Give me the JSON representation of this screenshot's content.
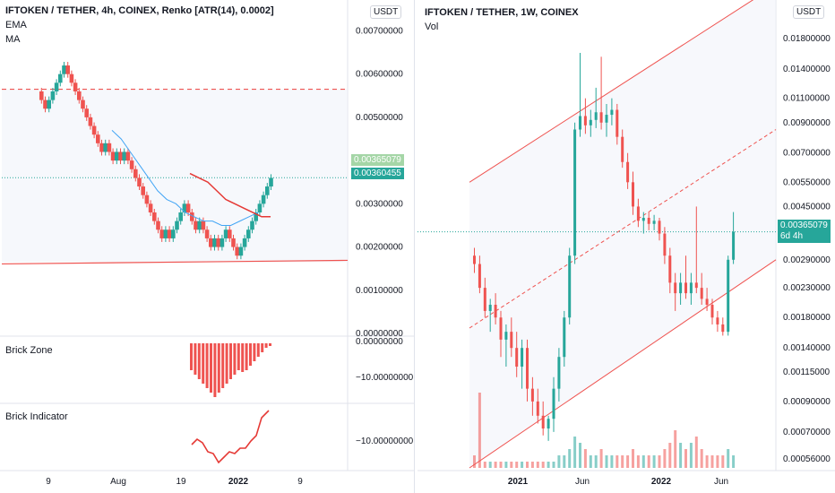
{
  "left": {
    "title": "IFTOKEN / TETHER, 4h, COINEX, Renko [ATR(14), 0.0002]",
    "overlays": [
      "EMA",
      "MA"
    ],
    "currency_button": "USDT",
    "price_labels": [
      {
        "text": "0.00365079",
        "bg": "#a5d6a7",
        "y": 0.00365079
      },
      {
        "text": "0.00360455",
        "bg": "#26a69a",
        "y": 0.00360455
      }
    ],
    "panes": [
      {
        "name": "Brick Zone",
        "tick": "0.00000000",
        "tick2": "−10.00000000"
      },
      {
        "name": "Brick Indicator",
        "tick": "−10.00000000"
      }
    ],
    "x_ticks": [
      {
        "label": "9",
        "bold": false
      },
      {
        "label": "Aug",
        "bold": false
      },
      {
        "label": "19",
        "bold": false
      },
      {
        "label": "2022",
        "bold": true
      },
      {
        "label": "9",
        "bold": false
      }
    ]
  },
  "right": {
    "title": "IFTOKEN / TETHER, 1W, COINEX",
    "overlays": [
      "Vol"
    ],
    "currency_button": "USDT",
    "price_label": {
      "text": "0.00365079",
      "sub": "6d 4h",
      "bg": "#26a69a"
    },
    "x_ticks": [
      {
        "label": "2021",
        "bold": true
      },
      {
        "label": "Jun",
        "bold": false
      },
      {
        "label": "2022",
        "bold": true
      },
      {
        "label": "Jun",
        "bold": false
      }
    ]
  },
  "chart_data": [
    {
      "type": "renko",
      "title": "IFTOKEN / TETHER, 4h, COINEX, Renko [ATR(14), 0.0002]",
      "y_ticks": [
        "0.00700000",
        "0.00600000",
        "0.00500000",
        "0.00300000",
        "0.00200000",
        "0.00100000",
        "0.00000000"
      ],
      "ylim": [
        0.0,
        0.0073
      ],
      "bricks": [
        {
          "y": 0.0054,
          "up": false
        },
        {
          "y": 0.0052,
          "up": false
        },
        {
          "y": 0.0054,
          "up": true
        },
        {
          "y": 0.0056,
          "up": true
        },
        {
          "y": 0.0058,
          "up": true
        },
        {
          "y": 0.006,
          "up": true
        },
        {
          "y": 0.0062,
          "up": true
        },
        {
          "y": 0.006,
          "up": false
        },
        {
          "y": 0.0058,
          "up": false
        },
        {
          "y": 0.0056,
          "up": false
        },
        {
          "y": 0.0054,
          "up": false
        },
        {
          "y": 0.0052,
          "up": false
        },
        {
          "y": 0.005,
          "up": false
        },
        {
          "y": 0.0048,
          "up": false
        },
        {
          "y": 0.0046,
          "up": false
        },
        {
          "y": 0.0044,
          "up": false
        },
        {
          "y": 0.0042,
          "up": false
        },
        {
          "y": 0.0044,
          "up": true
        },
        {
          "y": 0.0042,
          "up": false
        },
        {
          "y": 0.004,
          "up": false
        },
        {
          "y": 0.0042,
          "up": true
        },
        {
          "y": 0.004,
          "up": false
        },
        {
          "y": 0.0042,
          "up": true
        },
        {
          "y": 0.004,
          "up": false
        },
        {
          "y": 0.0038,
          "up": false
        },
        {
          "y": 0.0036,
          "up": false
        },
        {
          "y": 0.0034,
          "up": false
        },
        {
          "y": 0.0032,
          "up": false
        },
        {
          "y": 0.003,
          "up": false
        },
        {
          "y": 0.0028,
          "up": false
        },
        {
          "y": 0.0026,
          "up": false
        },
        {
          "y": 0.0024,
          "up": false
        },
        {
          "y": 0.0022,
          "up": false
        },
        {
          "y": 0.0024,
          "up": true
        },
        {
          "y": 0.0022,
          "up": false
        },
        {
          "y": 0.0024,
          "up": true
        },
        {
          "y": 0.0026,
          "up": true
        },
        {
          "y": 0.0028,
          "up": true
        },
        {
          "y": 0.003,
          "up": true
        },
        {
          "y": 0.0028,
          "up": false
        },
        {
          "y": 0.0026,
          "up": false
        },
        {
          "y": 0.0024,
          "up": false
        },
        {
          "y": 0.0026,
          "up": true
        },
        {
          "y": 0.0024,
          "up": false
        },
        {
          "y": 0.0022,
          "up": false
        },
        {
          "y": 0.002,
          "up": false
        },
        {
          "y": 0.0022,
          "up": true
        },
        {
          "y": 0.002,
          "up": false
        },
        {
          "y": 0.0022,
          "up": true
        },
        {
          "y": 0.0024,
          "up": true
        },
        {
          "y": 0.0022,
          "up": false
        },
        {
          "y": 0.002,
          "up": false
        },
        {
          "y": 0.0018,
          "up": false
        },
        {
          "y": 0.002,
          "up": true
        },
        {
          "y": 0.0022,
          "up": true
        },
        {
          "y": 0.0024,
          "up": true
        },
        {
          "y": 0.0026,
          "up": true
        },
        {
          "y": 0.0028,
          "up": true
        },
        {
          "y": 0.003,
          "up": true
        },
        {
          "y": 0.0032,
          "up": true
        },
        {
          "y": 0.0034,
          "up": true
        },
        {
          "y": 0.0036,
          "up": true
        }
      ],
      "ema": [
        0.0047,
        0.0045,
        0.0042,
        0.0039,
        0.0036,
        0.0033,
        0.0031,
        0.003,
        0.0028,
        0.0027,
        0.0026,
        0.0026,
        0.0025,
        0.0025,
        0.0026,
        0.0027,
        0.0028
      ],
      "ma": [
        0.0037,
        0.0036,
        0.0035,
        0.0033,
        0.0031,
        0.003,
        0.0029,
        0.0028,
        0.0027,
        0.0027
      ],
      "resistance": 0.00565,
      "support": 0.00165,
      "brick_zone": [
        3,
        3.5,
        4,
        4.5,
        5,
        5.5,
        6,
        5.5,
        5,
        4.5,
        4,
        3.5,
        3,
        3.2,
        3,
        2.5,
        2,
        1.5,
        1,
        0.5,
        0.3
      ],
      "brick_indicator": [
        3,
        4,
        3.5,
        3,
        4,
        5,
        4.5,
        5,
        4,
        3,
        3,
        2,
        1.5,
        1,
        0
      ]
    },
    {
      "type": "candlestick",
      "title": "IFTOKEN / TETHER, 1W, COINEX",
      "scale": "log",
      "y_ticks": [
        "0.01800000",
        "0.01400000",
        "0.01100000",
        "0.00900000",
        "0.00700000",
        "0.00550000",
        "0.00450000",
        "0.00290000",
        "0.00230000",
        "0.00180000",
        "0.00140000",
        "0.00115000",
        "0.00090000",
        "0.00070000",
        "0.00056000"
      ],
      "ylim": [
        0.00052,
        0.023
      ],
      "channel": {
        "slope_note": "ascending regression channel",
        "upper_end": 0.028,
        "mid_end": 0.0085,
        "lower_end": 0.0029
      },
      "candles": [
        {
          "o": 0.003,
          "h": 0.0032,
          "l": 0.0026,
          "c": 0.0028
        },
        {
          "o": 0.0028,
          "h": 0.003,
          "l": 0.0022,
          "c": 0.0023
        },
        {
          "o": 0.0023,
          "h": 0.0025,
          "l": 0.0018,
          "c": 0.0019
        },
        {
          "o": 0.0019,
          "h": 0.0021,
          "l": 0.0016,
          "c": 0.002
        },
        {
          "o": 0.002,
          "h": 0.0022,
          "l": 0.0017,
          "c": 0.0018
        },
        {
          "o": 0.0018,
          "h": 0.0019,
          "l": 0.0013,
          "c": 0.0015
        },
        {
          "o": 0.0015,
          "h": 0.0017,
          "l": 0.0012,
          "c": 0.0016
        },
        {
          "o": 0.0016,
          "h": 0.0018,
          "l": 0.0013,
          "c": 0.0014
        },
        {
          "o": 0.0014,
          "h": 0.0016,
          "l": 0.0011,
          "c": 0.0012
        },
        {
          "o": 0.0012,
          "h": 0.0015,
          "l": 0.001,
          "c": 0.0014
        },
        {
          "o": 0.0014,
          "h": 0.0015,
          "l": 0.0009,
          "c": 0.001
        },
        {
          "o": 0.001,
          "h": 0.0011,
          "l": 0.0008,
          "c": 0.0009
        },
        {
          "o": 0.0009,
          "h": 0.001,
          "l": 0.00075,
          "c": 0.0008
        },
        {
          "o": 0.0008,
          "h": 0.0009,
          "l": 0.00068,
          "c": 0.00072
        },
        {
          "o": 0.00072,
          "h": 0.0008,
          "l": 0.00065,
          "c": 0.00078
        },
        {
          "o": 0.00078,
          "h": 0.0011,
          "l": 0.0007,
          "c": 0.001
        },
        {
          "o": 0.001,
          "h": 0.0014,
          "l": 0.0009,
          "c": 0.0013
        },
        {
          "o": 0.0013,
          "h": 0.0019,
          "l": 0.0012,
          "c": 0.0018
        },
        {
          "o": 0.0018,
          "h": 0.0032,
          "l": 0.0017,
          "c": 0.003
        },
        {
          "o": 0.003,
          "h": 0.009,
          "l": 0.0028,
          "c": 0.0085
        },
        {
          "o": 0.0085,
          "h": 0.016,
          "l": 0.008,
          "c": 0.0095
        },
        {
          "o": 0.0095,
          "h": 0.011,
          "l": 0.0082,
          "c": 0.0088
        },
        {
          "o": 0.0088,
          "h": 0.01,
          "l": 0.008,
          "c": 0.0092
        },
        {
          "o": 0.0092,
          "h": 0.012,
          "l": 0.0086,
          "c": 0.0098
        },
        {
          "o": 0.0098,
          "h": 0.0155,
          "l": 0.0085,
          "c": 0.009
        },
        {
          "o": 0.009,
          "h": 0.0105,
          "l": 0.008,
          "c": 0.0096
        },
        {
          "o": 0.0096,
          "h": 0.011,
          "l": 0.0088,
          "c": 0.01
        },
        {
          "o": 0.01,
          "h": 0.0105,
          "l": 0.0075,
          "c": 0.008
        },
        {
          "o": 0.008,
          "h": 0.0085,
          "l": 0.0062,
          "c": 0.0065
        },
        {
          "o": 0.0065,
          "h": 0.007,
          "l": 0.0052,
          "c": 0.0055
        },
        {
          "o": 0.0055,
          "h": 0.006,
          "l": 0.0042,
          "c": 0.0045
        },
        {
          "o": 0.0045,
          "h": 0.0048,
          "l": 0.0038,
          "c": 0.004
        },
        {
          "o": 0.004,
          "h": 0.0043,
          "l": 0.0036,
          "c": 0.0041
        },
        {
          "o": 0.0041,
          "h": 0.0043,
          "l": 0.0037,
          "c": 0.0039
        },
        {
          "o": 0.0039,
          "h": 0.0042,
          "l": 0.0037,
          "c": 0.004
        },
        {
          "o": 0.004,
          "h": 0.0041,
          "l": 0.0034,
          "c": 0.0036
        },
        {
          "o": 0.0036,
          "h": 0.0038,
          "l": 0.0028,
          "c": 0.003
        },
        {
          "o": 0.003,
          "h": 0.0032,
          "l": 0.0022,
          "c": 0.0024
        },
        {
          "o": 0.0024,
          "h": 0.0026,
          "l": 0.0019,
          "c": 0.0022
        },
        {
          "o": 0.0022,
          "h": 0.0026,
          "l": 0.002,
          "c": 0.0024
        },
        {
          "o": 0.0024,
          "h": 0.003,
          "l": 0.0021,
          "c": 0.0022
        },
        {
          "o": 0.0022,
          "h": 0.0026,
          "l": 0.002,
          "c": 0.0024
        },
        {
          "o": 0.0024,
          "h": 0.0045,
          "l": 0.0022,
          "c": 0.0023
        },
        {
          "o": 0.0023,
          "h": 0.0026,
          "l": 0.002,
          "c": 0.0021
        },
        {
          "o": 0.0021,
          "h": 0.0023,
          "l": 0.0019,
          "c": 0.002
        },
        {
          "o": 0.002,
          "h": 0.0021,
          "l": 0.0017,
          "c": 0.0018
        },
        {
          "o": 0.0018,
          "h": 0.0019,
          "l": 0.0016,
          "c": 0.0017
        },
        {
          "o": 0.0017,
          "h": 0.0018,
          "l": 0.00155,
          "c": 0.0016
        },
        {
          "o": 0.0016,
          "h": 0.003,
          "l": 0.00155,
          "c": 0.0029
        },
        {
          "o": 0.0029,
          "h": 0.0043,
          "l": 0.0028,
          "c": 0.00365
        }
      ],
      "volume": [
        2,
        12,
        1,
        1,
        1,
        1,
        1,
        1,
        1,
        1,
        1,
        1,
        1,
        1,
        1,
        1,
        2,
        2,
        3,
        5,
        4,
        3,
        2,
        2,
        3,
        2,
        2,
        2,
        2,
        2,
        3,
        2,
        2,
        2,
        2,
        2,
        3,
        4,
        6,
        4,
        3,
        4,
        5,
        3,
        2,
        2,
        2,
        2,
        3,
        2
      ]
    }
  ]
}
